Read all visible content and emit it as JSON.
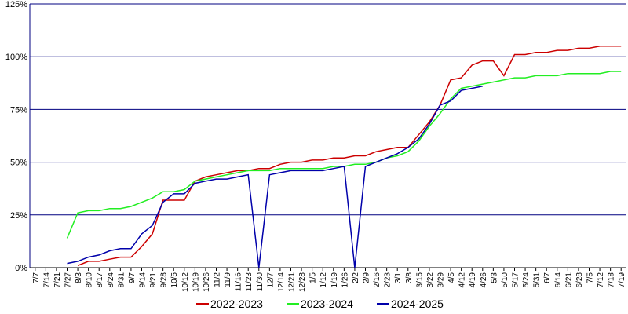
{
  "chart_data": {
    "type": "line",
    "categories": [
      "7/7",
      "7/14",
      "7/21",
      "7/27",
      "8/3",
      "8/10",
      "8/17",
      "8/24",
      "8/31",
      "9/7",
      "9/14",
      "9/21",
      "9/28",
      "10/5",
      "10/12",
      "10/19",
      "10/26",
      "11/2",
      "11/9",
      "11/16",
      "11/23",
      "11/30",
      "12/7",
      "12/14",
      "12/21",
      "12/28",
      "1/5",
      "1/12",
      "1/19",
      "1/26",
      "2/2",
      "2/9",
      "2/16",
      "2/23",
      "3/1",
      "3/8",
      "3/15",
      "3/22",
      "3/29",
      "4/5",
      "4/12",
      "4/19",
      "4/26",
      "5/3",
      "5/10",
      "5/17",
      "5/24",
      "5/31",
      "6/7",
      "6/14",
      "6/21",
      "6/28",
      "7/5",
      "7/12",
      "7/18",
      "7/19"
    ],
    "series": [
      {
        "name": "2022-2023",
        "color": "#cc0000",
        "values": [
          null,
          null,
          null,
          null,
          1,
          3,
          3,
          4,
          5,
          5,
          10,
          16,
          32,
          32,
          32,
          41,
          43,
          44,
          45,
          46,
          46,
          47,
          47,
          49,
          50,
          50,
          51,
          51,
          52,
          52,
          53,
          53,
          55,
          56,
          57,
          57,
          63,
          69,
          77,
          89,
          90,
          96,
          98,
          98,
          91,
          101,
          101,
          102,
          102,
          103,
          103,
          104,
          104,
          105,
          105,
          105
        ]
      },
      {
        "name": "2023-2024",
        "color": "#22ee22",
        "values": [
          null,
          null,
          null,
          14,
          26,
          27,
          27,
          28,
          28,
          29,
          31,
          33,
          36,
          36,
          37,
          41,
          42,
          43,
          44,
          45,
          46,
          46,
          46,
          47,
          47,
          47,
          47,
          47,
          48,
          48,
          49,
          49,
          50,
          52,
          53,
          55,
          60,
          67,
          73,
          80,
          85,
          86,
          87,
          88,
          89,
          90,
          90,
          91,
          91,
          91,
          92,
          92,
          92,
          92,
          93,
          93
        ]
      },
      {
        "name": "2024-2025",
        "color": "#0000aa",
        "values": [
          null,
          null,
          null,
          2,
          3,
          5,
          6,
          8,
          9,
          9,
          16,
          20,
          31,
          35,
          35,
          40,
          41,
          42,
          42,
          43,
          44,
          0,
          44,
          45,
          46,
          46,
          46,
          46,
          47,
          48,
          0,
          48,
          50,
          52,
          54,
          57,
          61,
          68,
          77,
          79,
          84,
          85,
          86,
          null,
          null,
          null,
          null,
          null,
          null,
          null,
          null,
          null,
          null,
          null,
          null,
          null
        ]
      }
    ],
    "ylim": [
      0,
      125
    ],
    "yticks": [
      {
        "value": 0,
        "label": "0%"
      },
      {
        "value": 25,
        "label": "25%"
      },
      {
        "value": 50,
        "label": "50%"
      },
      {
        "value": 75,
        "label": "75%"
      },
      {
        "value": 100,
        "label": "100%"
      },
      {
        "value": 125,
        "label": "125%"
      }
    ],
    "grid": true,
    "grid_color": "#000080",
    "legend": "bottom"
  }
}
